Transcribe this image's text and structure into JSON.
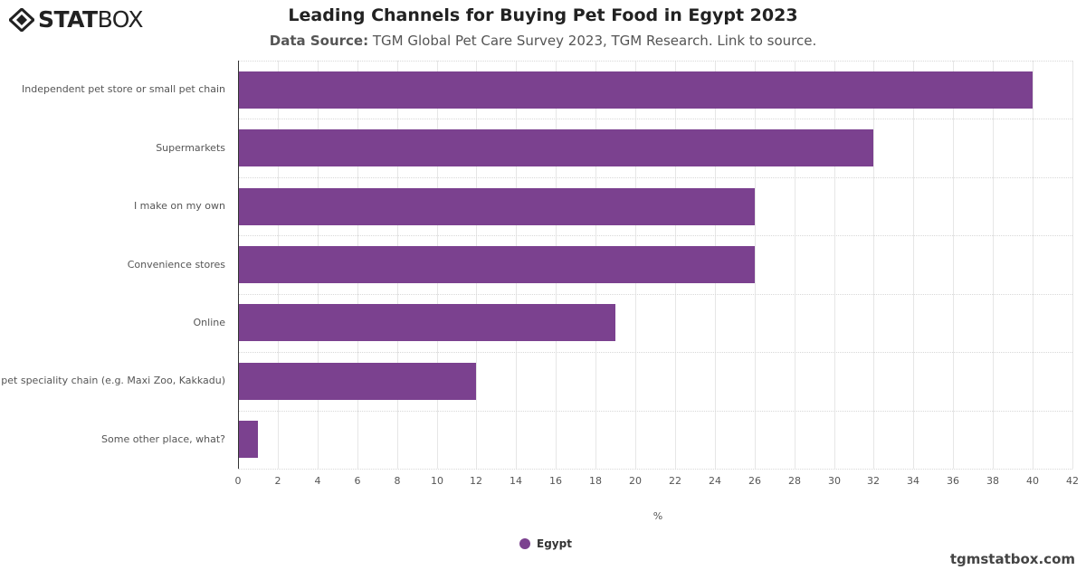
{
  "header": {
    "logo_bold": "STAT",
    "logo_light": "BOX",
    "title": "Leading Channels for Buying Pet Food in Egypt 2023",
    "subtitle_label": "Data Source:",
    "subtitle_text": " TGM Global Pet Care Survey 2023, TGM Research. Link to source."
  },
  "colors": {
    "bar": "#7b418f",
    "axis": "#333333",
    "grid": "#e6e6e6"
  },
  "chart_data": {
    "type": "bar",
    "orientation": "horizontal",
    "title": "Leading Channels for Buying Pet Food in Egypt 2023",
    "subtitle": "Data Source: TGM Global Pet Care Survey 2023, TGM Research. Link to source.",
    "categories": [
      "Independent pet store or small pet chain",
      "Supermarkets",
      "I make on my own",
      "Convenience stores",
      "Online",
      "pet speciality chain (e.g. Maxi Zoo, Kakkadu)",
      "Some other place, what?"
    ],
    "series": [
      {
        "name": "Egypt",
        "color": "#7b418f",
        "values": [
          40,
          32,
          26,
          26,
          19,
          12,
          1
        ]
      }
    ],
    "xlabel": "%",
    "ylabel": "",
    "xlim": [
      0,
      42
    ],
    "xticks": [
      "0",
      "2",
      "4",
      "6",
      "8",
      "10",
      "12",
      "14",
      "16",
      "18",
      "20",
      "22",
      "24",
      "26",
      "28",
      "30",
      "32",
      "34",
      "36",
      "38",
      "40",
      "42"
    ],
    "grid": true,
    "legend_position": "bottom"
  },
  "legend": {
    "label": "Egypt"
  },
  "footer": {
    "text": "tgmstatbox.com"
  }
}
